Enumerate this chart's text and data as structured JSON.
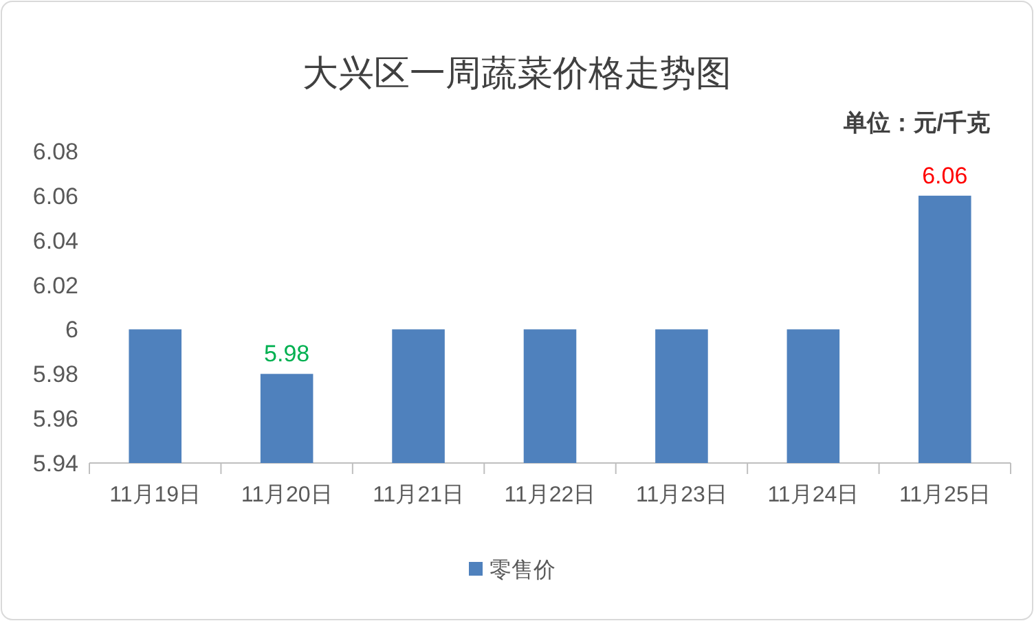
{
  "chart_data": {
    "type": "bar",
    "title": "大兴区一周蔬菜价格走势图",
    "subtitle": "单位：元/千克",
    "categories": [
      "11月19日",
      "11月20日",
      "11月21日",
      "11月22日",
      "11月23日",
      "11月24日",
      "11月25日"
    ],
    "series": [
      {
        "name": "零售价",
        "color": "#4f81bd",
        "values": [
          6,
          5.98,
          6,
          6,
          6,
          6,
          6.06
        ],
        "value_labels": [
          null,
          "5.98",
          null,
          null,
          null,
          null,
          "6.06"
        ]
      }
    ],
    "ylim": [
      5.94,
      6.08
    ],
    "yticks": [
      5.94,
      5.96,
      5.98,
      6,
      6.02,
      6.04,
      6.06,
      6.08
    ],
    "grid": false,
    "legend": "bottom"
  }
}
